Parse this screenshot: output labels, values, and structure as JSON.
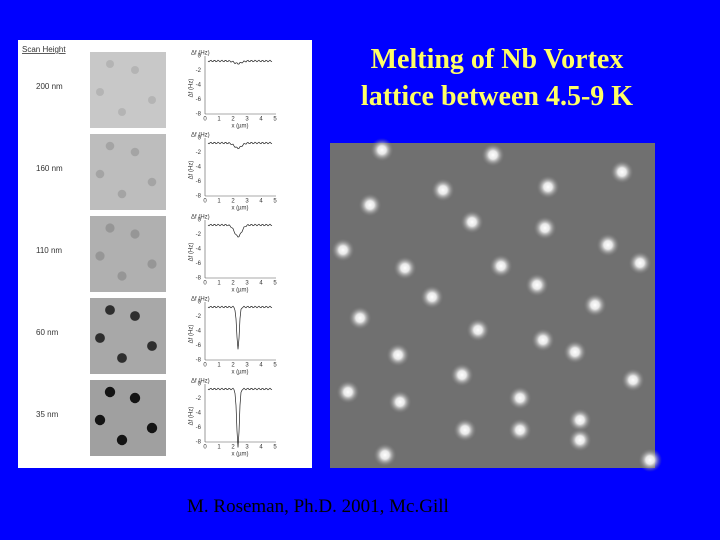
{
  "slide": {
    "title_lines": [
      "Melting of Nb Vortex",
      "lattice between 4.5-9 K"
    ],
    "footer": "M. Roseman,  Ph.D. 2001, Mc.Gill",
    "panel": {
      "header": "Scan Height",
      "rows": [
        "200 nm",
        "160 nm",
        "110 nm",
        "60 nm",
        "35 nm"
      ],
      "plot_y_label": "Δf (Hz)",
      "plot_x_label": "x (µm)",
      "plot_yticks": [
        "0",
        "-2",
        "-4",
        "-6",
        "-8"
      ],
      "plot_xticks": [
        "0",
        "1",
        "2",
        "3",
        "4",
        "5"
      ]
    }
  }
}
